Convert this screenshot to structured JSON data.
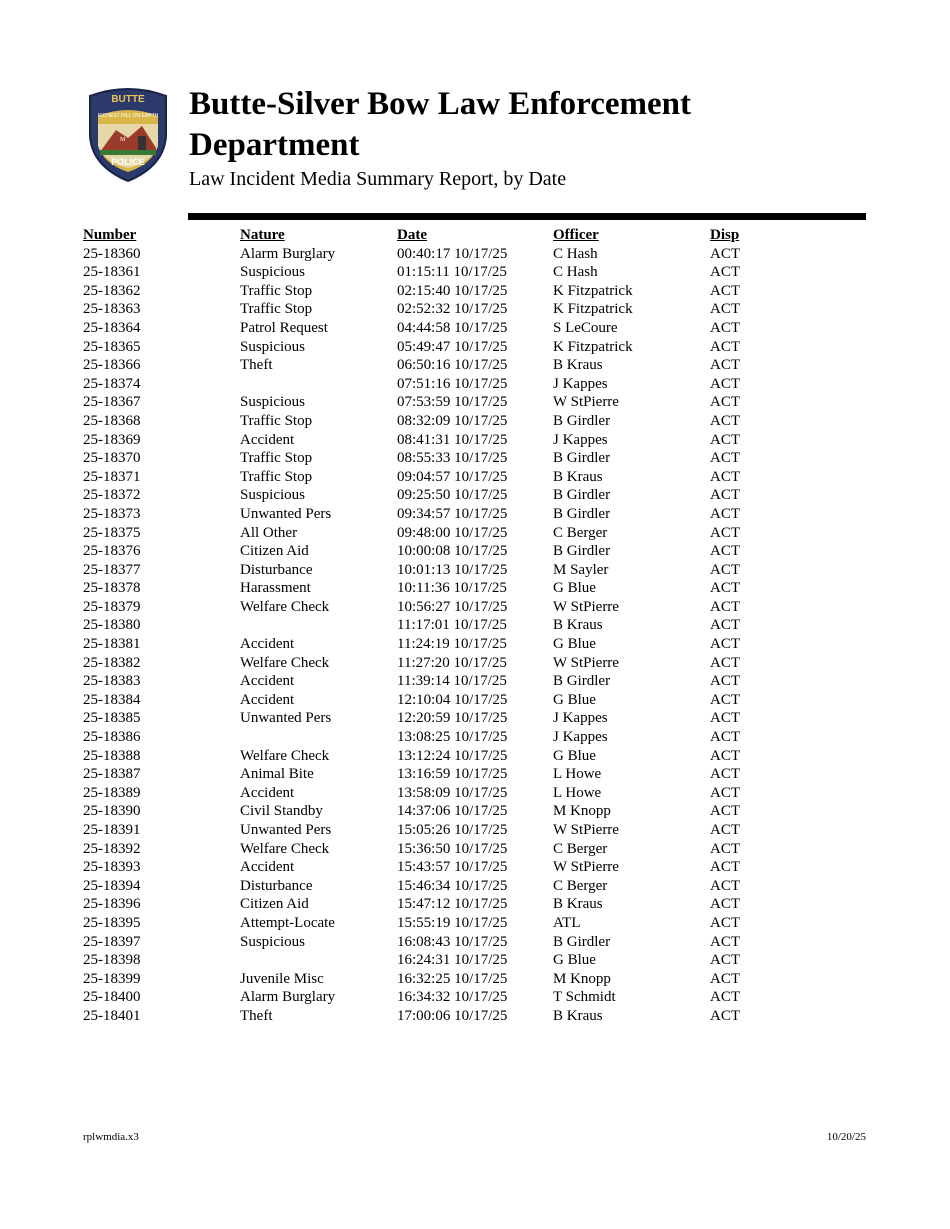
{
  "header": {
    "logo_text": [
      "BUTTE",
      "RICHEST HILL ON EARTH",
      "POLICE"
    ],
    "title_line1": "Butte-Silver Bow Law Enforcement",
    "title_line2": "Department",
    "subtitle": "Law Incident Media Summary Report, by Date"
  },
  "table": {
    "columns": [
      "Number",
      "Nature",
      "Date",
      "Officer",
      "Disp"
    ],
    "rows": [
      [
        "25-18360",
        "Alarm Burglary",
        "00:40:17 10/17/25",
        "C Hash",
        "ACT"
      ],
      [
        "25-18361",
        "Suspicious",
        "01:15:11 10/17/25",
        "C Hash",
        "ACT"
      ],
      [
        "25-18362",
        "Traffic Stop",
        "02:15:40 10/17/25",
        "K Fitzpatrick",
        "ACT"
      ],
      [
        "25-18363",
        "Traffic Stop",
        "02:52:32 10/17/25",
        "K Fitzpatrick",
        "ACT"
      ],
      [
        "25-18364",
        "Patrol Request",
        "04:44:58 10/17/25",
        "S LeCoure",
        "ACT"
      ],
      [
        "25-18365",
        "Suspicious",
        "05:49:47 10/17/25",
        "K Fitzpatrick",
        "ACT"
      ],
      [
        "25-18366",
        "Theft",
        "06:50:16 10/17/25",
        "B Kraus",
        "ACT"
      ],
      [
        "25-18374",
        "",
        "07:51:16 10/17/25",
        "J Kappes",
        "ACT"
      ],
      [
        "25-18367",
        "Suspicious",
        "07:53:59 10/17/25",
        "W StPierre",
        "ACT"
      ],
      [
        "25-18368",
        "Traffic Stop",
        "08:32:09 10/17/25",
        "B Girdler",
        "ACT"
      ],
      [
        "25-18369",
        "Accident",
        "08:41:31 10/17/25",
        "J Kappes",
        "ACT"
      ],
      [
        "25-18370",
        "Traffic Stop",
        "08:55:33 10/17/25",
        "B Girdler",
        "ACT"
      ],
      [
        "25-18371",
        "Traffic Stop",
        "09:04:57 10/17/25",
        "B Kraus",
        "ACT"
      ],
      [
        "25-18372",
        "Suspicious",
        "09:25:50 10/17/25",
        "B Girdler",
        "ACT"
      ],
      [
        "25-18373",
        "Unwanted Pers",
        "09:34:57 10/17/25",
        "B Girdler",
        "ACT"
      ],
      [
        "25-18375",
        "All Other",
        "09:48:00 10/17/25",
        "C Berger",
        "ACT"
      ],
      [
        "25-18376",
        "Citizen Aid",
        "10:00:08 10/17/25",
        "B Girdler",
        "ACT"
      ],
      [
        "25-18377",
        "Disturbance",
        "10:01:13 10/17/25",
        "M Sayler",
        "ACT"
      ],
      [
        "25-18378",
        "Harassment",
        "10:11:36 10/17/25",
        "G Blue",
        "ACT"
      ],
      [
        "25-18379",
        "Welfare Check",
        "10:56:27 10/17/25",
        "W StPierre",
        "ACT"
      ],
      [
        "25-18380",
        "",
        "11:17:01 10/17/25",
        "B Kraus",
        "ACT"
      ],
      [
        "25-18381",
        "Accident",
        "11:24:19 10/17/25",
        "G Blue",
        "ACT"
      ],
      [
        "25-18382",
        "Welfare Check",
        "11:27:20 10/17/25",
        "W StPierre",
        "ACT"
      ],
      [
        "25-18383",
        "Accident",
        "11:39:14 10/17/25",
        "B Girdler",
        "ACT"
      ],
      [
        "25-18384",
        "Accident",
        "12:10:04 10/17/25",
        "G Blue",
        "ACT"
      ],
      [
        "25-18385",
        "Unwanted Pers",
        "12:20:59 10/17/25",
        "J Kappes",
        "ACT"
      ],
      [
        "25-18386",
        "",
        "13:08:25 10/17/25",
        "J Kappes",
        "ACT"
      ],
      [
        "25-18388",
        "Welfare Check",
        "13:12:24 10/17/25",
        "G Blue",
        "ACT"
      ],
      [
        "25-18387",
        "Animal Bite",
        "13:16:59 10/17/25",
        "L Howe",
        "ACT"
      ],
      [
        "25-18389",
        "Accident",
        "13:58:09 10/17/25",
        "L Howe",
        "ACT"
      ],
      [
        "25-18390",
        "Civil Standby",
        "14:37:06 10/17/25",
        "M Knopp",
        "ACT"
      ],
      [
        "25-18391",
        "Unwanted Pers",
        "15:05:26 10/17/25",
        "W StPierre",
        "ACT"
      ],
      [
        "25-18392",
        "Welfare Check",
        "15:36:50 10/17/25",
        "C Berger",
        "ACT"
      ],
      [
        "25-18393",
        "Accident",
        "15:43:57 10/17/25",
        "W StPierre",
        "ACT"
      ],
      [
        "25-18394",
        "Disturbance",
        "15:46:34 10/17/25",
        "C Berger",
        "ACT"
      ],
      [
        "25-18396",
        "Citizen Aid",
        "15:47:12 10/17/25",
        "B Kraus",
        "ACT"
      ],
      [
        "25-18395",
        "Attempt-Locate",
        "15:55:19 10/17/25",
        "ATL",
        "ACT"
      ],
      [
        "25-18397",
        "Suspicious",
        "16:08:43 10/17/25",
        "B Girdler",
        "ACT"
      ],
      [
        "25-18398",
        "",
        "16:24:31 10/17/25",
        "G Blue",
        "ACT"
      ],
      [
        "25-18399",
        "Juvenile Misc",
        "16:32:25 10/17/25",
        "M Knopp",
        "ACT"
      ],
      [
        "25-18400",
        "Alarm Burglary",
        "16:34:32 10/17/25",
        "T Schmidt",
        "ACT"
      ],
      [
        "25-18401",
        "Theft",
        "17:00:06 10/17/25",
        "B Kraus",
        "ACT"
      ]
    ]
  },
  "footer": {
    "report_id": "rplwmdia.x3",
    "print_date": "10/20/25"
  }
}
